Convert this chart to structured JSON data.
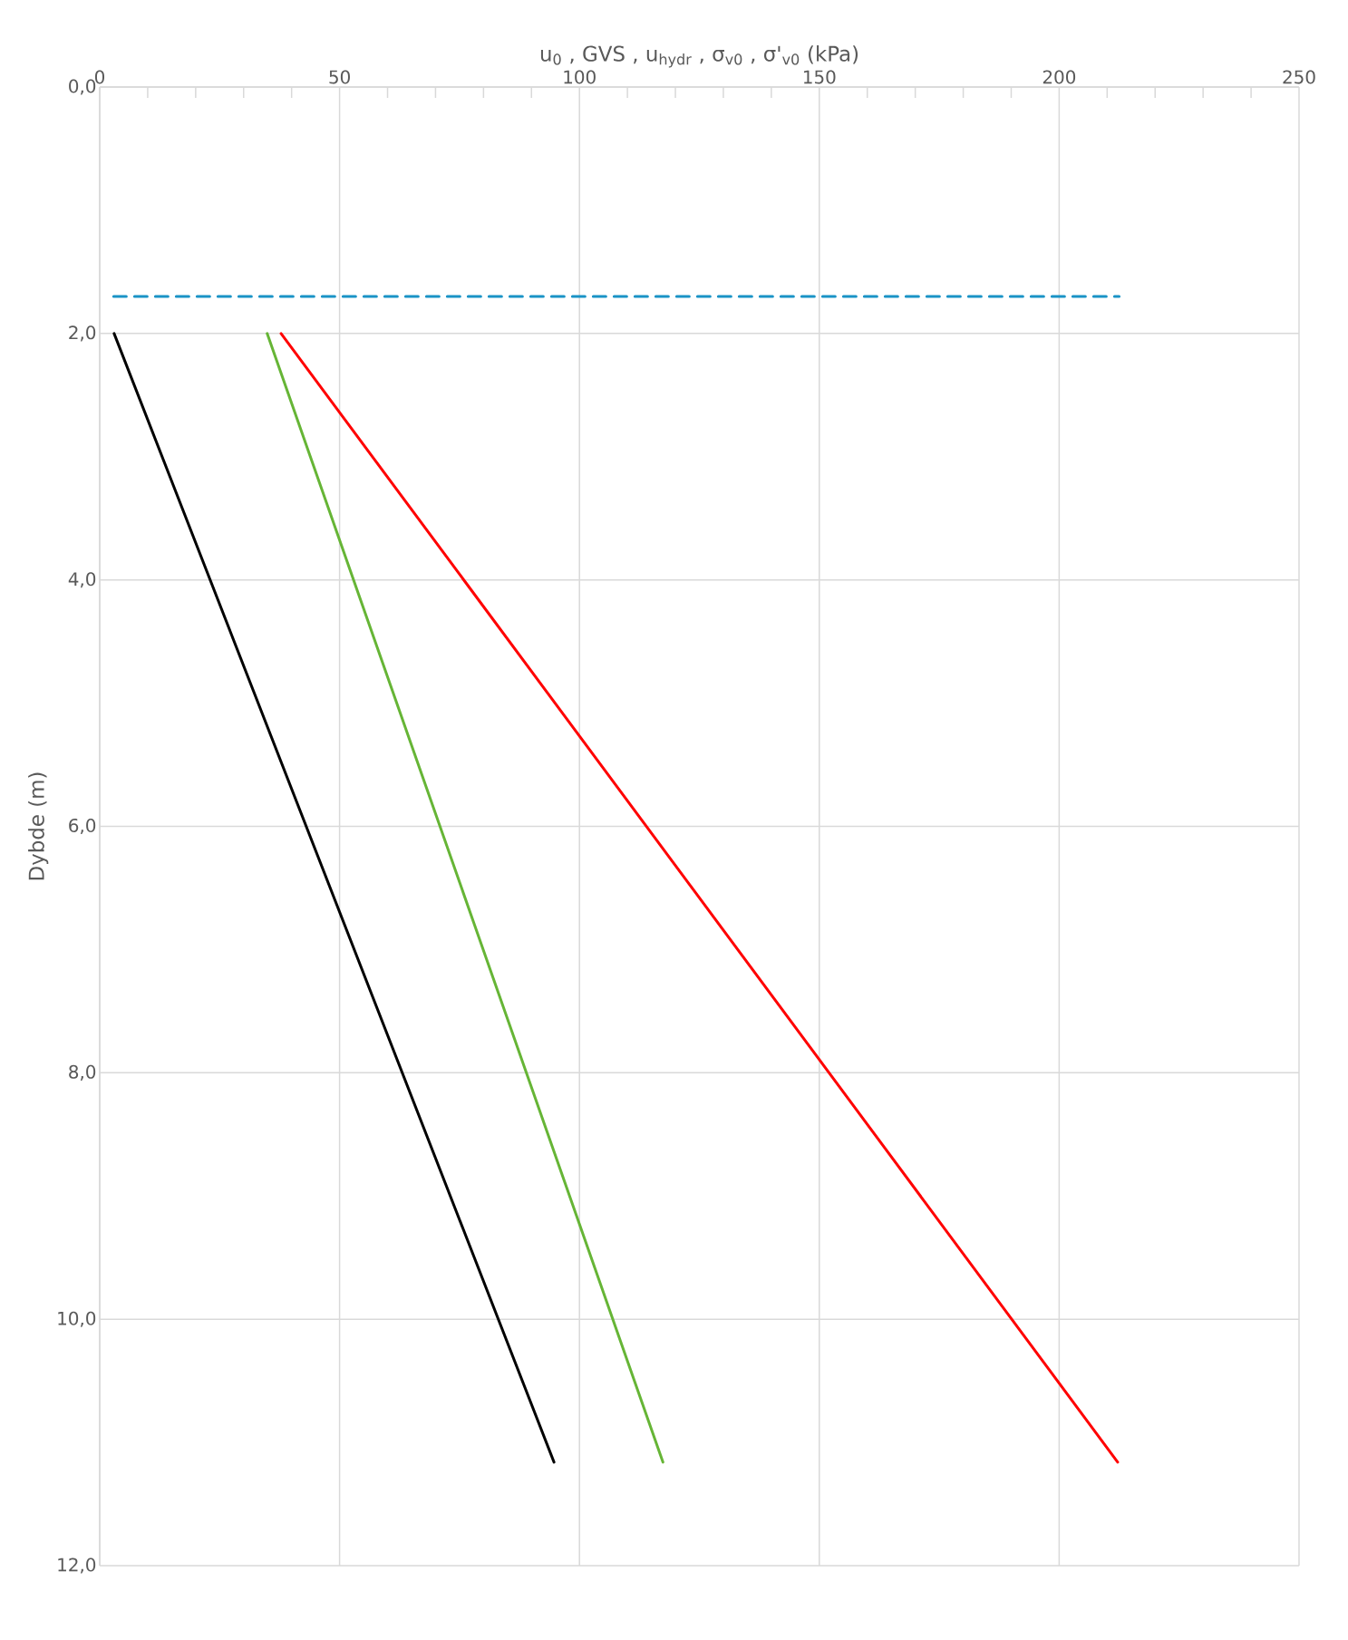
{
  "chart_data": {
    "type": "line",
    "xlabel": "u$_{0}$ , GVS , u$_{hydr}$ , σ$_{v0}$ , σ'$_{v0}$ (kPa)",
    "ylabel": "Dybde (m)",
    "series": [
      {
        "color": "#000000",
        "x": [
          3.0,
          94.7
        ],
        "values": [
          2.0,
          11.16
        ],
        "line_style": "solid"
      },
      {
        "color": "#1a93c6",
        "x": [
          2.9,
          212.5
        ],
        "values": [
          1.7,
          1.7
        ],
        "line_style": "dashed"
      },
      {
        "color": "#66b536",
        "x": [
          34.9,
          117.4
        ],
        "values": [
          2.0,
          11.16
        ],
        "line_style": "solid"
      },
      {
        "color": "#ff0000",
        "x": [
          37.8,
          212.2
        ],
        "values": [
          2.0,
          11.16
        ],
        "line_style": "solid"
      }
    ],
    "xlim": [
      0,
      250
    ],
    "xticks": [
      0,
      50,
      100,
      150,
      200,
      250
    ],
    "ylim": [
      12,
      0
    ],
    "yticks": [
      {
        "value": 0,
        "label": "0,0"
      },
      {
        "value": 2,
        "label": "2,0"
      },
      {
        "value": 4,
        "label": "4,0"
      },
      {
        "value": 6,
        "label": "6,0"
      },
      {
        "value": 8,
        "label": "8,0"
      },
      {
        "value": 10,
        "label": "10,0"
      },
      {
        "value": 12,
        "label": "12,0"
      }
    ],
    "grid": true,
    "marker": "none"
  }
}
